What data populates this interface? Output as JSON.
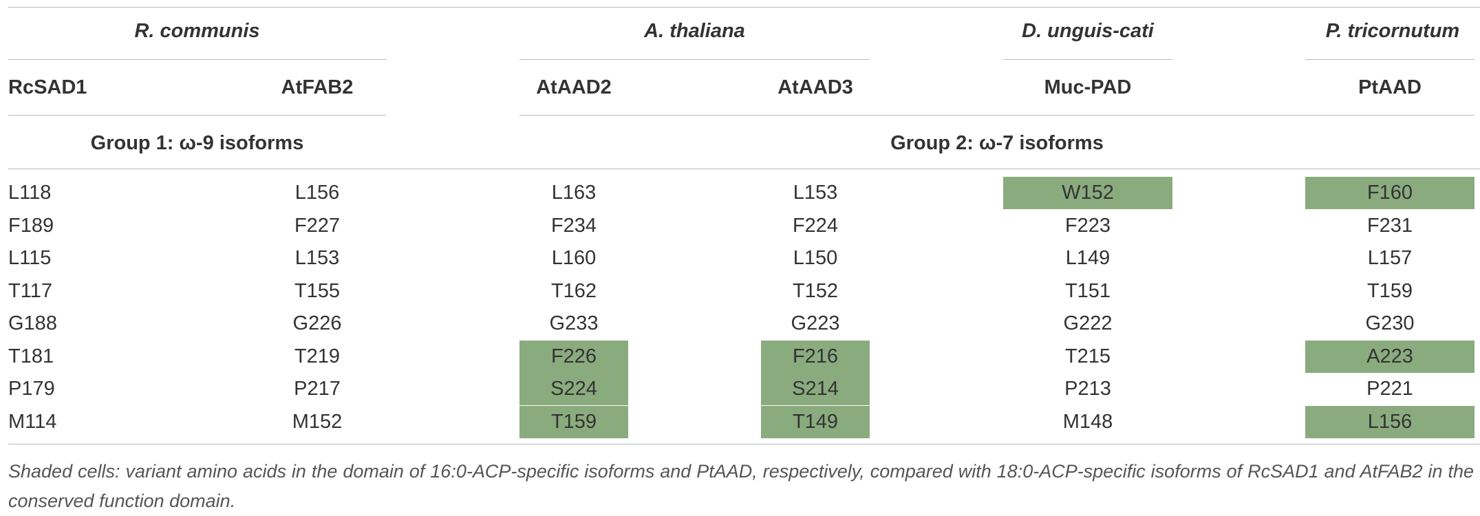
{
  "species": [
    "R. communis",
    "A. thaliana",
    "D. unguis-cati",
    "P. tricornutum"
  ],
  "isoforms": [
    "RcSAD1",
    "AtFAB2",
    "AtAAD2",
    "AtAAD3",
    "Muc-PAD",
    "PtAAD"
  ],
  "groups": [
    "Group 1: ω-9 isoforms",
    "Group 2: ω-7 isoforms"
  ],
  "rows": [
    [
      "L118",
      "L156",
      "L163",
      "L153",
      "W152",
      "F160"
    ],
    [
      "F189",
      "F227",
      "F234",
      "F224",
      "F223",
      "F231"
    ],
    [
      "L115",
      "L153",
      "L160",
      "L150",
      "L149",
      "L157"
    ],
    [
      "T117",
      "T155",
      "T162",
      "T152",
      "T151",
      "T159"
    ],
    [
      "G188",
      "G226",
      "G233",
      "G223",
      "G222",
      "G230"
    ],
    [
      "T181",
      "T219",
      "F226",
      "F216",
      "T215",
      "A223"
    ],
    [
      "P179",
      "P217",
      "S224",
      "S214",
      "P213",
      "P221"
    ],
    [
      "M114",
      "M152",
      "T159",
      "T149",
      "M148",
      "L156"
    ]
  ],
  "shaded_cells": [
    [
      0,
      4
    ],
    [
      0,
      5
    ],
    [
      5,
      2
    ],
    [
      5,
      3
    ],
    [
      5,
      5
    ],
    [
      6,
      2
    ],
    [
      6,
      3
    ],
    [
      7,
      2
    ],
    [
      7,
      3
    ],
    [
      7,
      5
    ]
  ],
  "shade_color": "#8aab7e",
  "caption": "Shaded cells: variant amino acids in the domain of 16:0-ACP-specific isoforms and PtAAD, respectively, compared with 18:0-ACP-specific isoforms of RcSAD1 and AtFAB2 in the conserved function domain."
}
